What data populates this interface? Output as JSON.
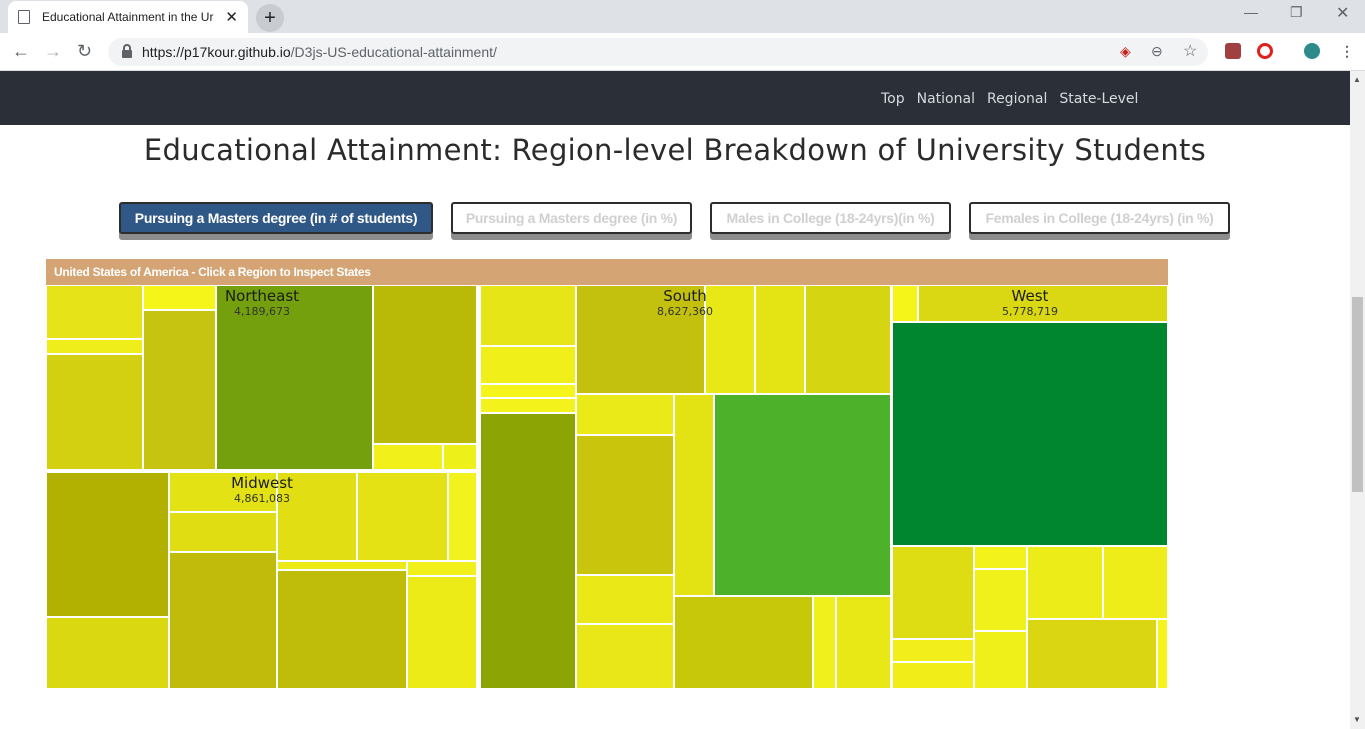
{
  "browser": {
    "tab_title": "Educational Attainment in the Ur",
    "url_host": "https://p17kour.github.io",
    "url_path": "/D3js-US-educational-attainment/"
  },
  "nav": {
    "links": [
      "Top",
      "National",
      "Regional",
      "State-Level"
    ]
  },
  "page": {
    "title": "Educational Attainment: Region-level Breakdown of University Students"
  },
  "buttons": [
    {
      "label": "Pursuing a Masters degree (in # of students)",
      "active": true
    },
    {
      "label": "Pursuing a Masters degree (in %)",
      "active": false
    },
    {
      "label": "Males in College (18-24yrs)(in %)",
      "active": false
    },
    {
      "label": "Females in College (18-24yrs) (in %)",
      "active": false
    }
  ],
  "treemap": {
    "header": "United States of America - Click a Region to Inspect States",
    "regions": [
      {
        "name": "Northeast",
        "value": "4,189,673"
      },
      {
        "name": "Midwest",
        "value": "4,861,083"
      },
      {
        "name": "South",
        "value": "8,627,360"
      },
      {
        "name": "West",
        "value": "5,778,719"
      }
    ]
  },
  "chart_data": {
    "type": "treemap",
    "title": "Educational Attainment: Region-level Breakdown of University Students",
    "measure": "Pursuing a Masters degree (in # of students)",
    "regions": [
      {
        "name": "Northeast",
        "value": 4189673
      },
      {
        "name": "Midwest",
        "value": 4861083
      },
      {
        "name": "South",
        "value": 8627360
      },
      {
        "name": "West",
        "value": 5778719
      }
    ]
  }
}
